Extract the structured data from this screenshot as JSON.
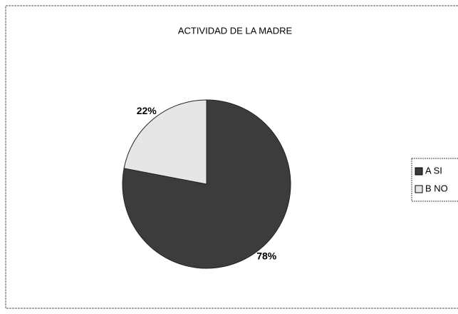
{
  "chart_data": {
    "type": "pie",
    "title": "ACTIVIDAD DE LA MADRE",
    "categories": [
      "A SI",
      "B NO"
    ],
    "values": [
      78,
      22
    ],
    "value_labels": [
      "78%",
      "22%"
    ],
    "colors": [
      "#3c3c3c",
      "#e6e6e6"
    ]
  }
}
